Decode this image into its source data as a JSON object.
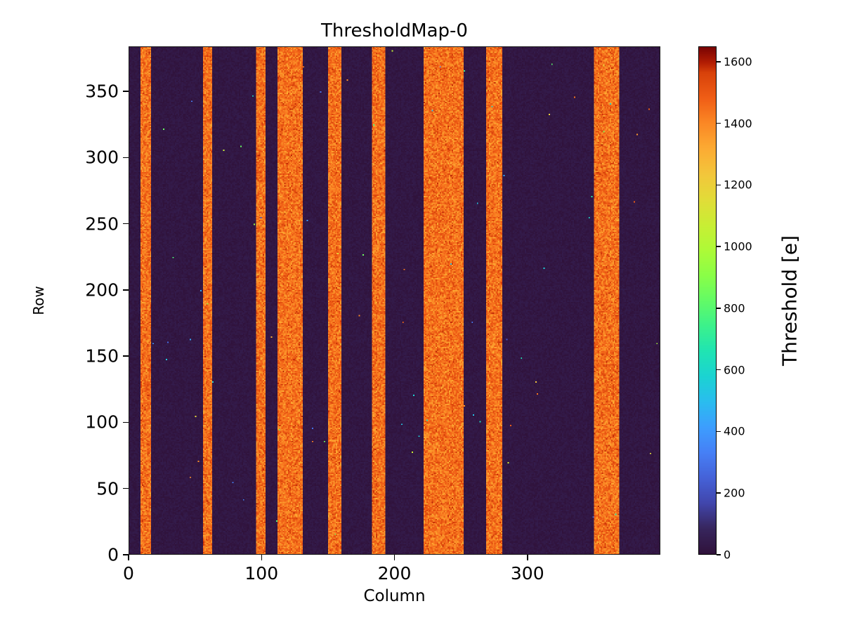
{
  "figure": {
    "background": "#ffffff"
  },
  "chart_data": {
    "type": "heatmap",
    "title": "ThresholdMap-0",
    "xlabel": "Column",
    "ylabel": "Row",
    "xlim": [
      0,
      400
    ],
    "ylim": [
      0,
      384
    ],
    "xticks": [
      0,
      100,
      200,
      300
    ],
    "yticks": [
      0,
      50,
      100,
      150,
      200,
      250,
      300,
      350
    ],
    "background_value": 0,
    "stripe_value": 1450,
    "stripe_noise": 150,
    "stripes": [
      [
        9,
        17
      ],
      [
        56,
        63
      ],
      [
        96,
        103
      ],
      [
        112,
        131
      ],
      [
        150,
        160
      ],
      [
        183,
        193
      ],
      [
        222,
        252
      ],
      [
        269,
        281
      ],
      [
        350,
        369
      ]
    ],
    "colorbar": {
      "label": "Threshold [e]",
      "ticks": [
        0,
        200,
        400,
        600,
        800,
        1000,
        1200,
        1400,
        1600
      ],
      "vmin": 0,
      "vmax": 1650,
      "colormap": "turbo",
      "stops": [
        [
          0.0,
          "#30123b"
        ],
        [
          0.05,
          "#37265e"
        ],
        [
          0.1,
          "#4146ac"
        ],
        [
          0.15,
          "#4562d8"
        ],
        [
          0.2,
          "#4680f6"
        ],
        [
          0.25,
          "#3d9efe"
        ],
        [
          0.3,
          "#2abdef"
        ],
        [
          0.35,
          "#1bd3d2"
        ],
        [
          0.4,
          "#20e4b3"
        ],
        [
          0.45,
          "#3cf18c"
        ],
        [
          0.5,
          "#63fb66"
        ],
        [
          0.55,
          "#8bfe47"
        ],
        [
          0.6,
          "#aefa37"
        ],
        [
          0.65,
          "#c9ee34"
        ],
        [
          0.7,
          "#e2dc38"
        ],
        [
          0.75,
          "#f3c63b"
        ],
        [
          0.8,
          "#fcab33"
        ],
        [
          0.85,
          "#fb8825"
        ],
        [
          0.9,
          "#f05e16"
        ],
        [
          0.95,
          "#d8420a"
        ],
        [
          0.97,
          "#b21d03"
        ],
        [
          1.0,
          "#7a0403"
        ]
      ]
    }
  }
}
